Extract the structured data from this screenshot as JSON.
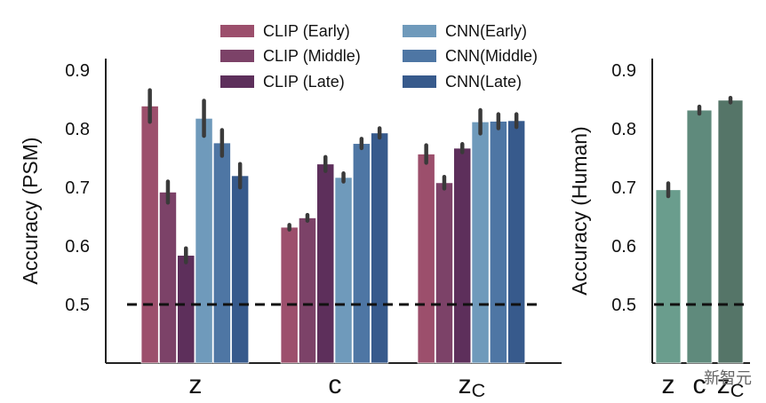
{
  "watermark": "新智元",
  "chart_data": [
    {
      "type": "bar",
      "ylabel": "Accuracy (PSM)",
      "ylim": [
        0.4,
        0.92
      ],
      "yticks": [
        "0.5",
        "0.6",
        "0.7",
        "0.8",
        "0.9"
      ],
      "ytick_values": [
        0.5,
        0.6,
        0.7,
        0.8,
        0.9
      ],
      "categories": [
        {
          "main": "z",
          "sub": ""
        },
        {
          "main": "c",
          "sub": ""
        },
        {
          "main": "z",
          "sub": "C"
        }
      ],
      "chance_line": 0.5,
      "error_bars": true,
      "grid": false,
      "legend_position": "top",
      "series": [
        {
          "name": "CLIP (Early)",
          "color": "#9c4f6c",
          "values": [
            0.839,
            0.632,
            0.757
          ],
          "err": [
            0.027,
            0.004,
            0.015
          ]
        },
        {
          "name": "CLIP (Middle)",
          "color": "#7c4268",
          "values": [
            0.692,
            0.648,
            0.708
          ],
          "err": [
            0.018,
            0.005,
            0.01
          ]
        },
        {
          "name": "CLIP (Late)",
          "color": "#5d2f5b",
          "values": [
            0.584,
            0.74,
            0.767
          ],
          "err": [
            0.012,
            0.012,
            0.007
          ]
        },
        {
          "name": "CNN(Early)",
          "color": "#6f9abb",
          "values": [
            0.818,
            0.717,
            0.812
          ],
          "err": [
            0.03,
            0.007,
            0.02
          ]
        },
        {
          "name": "CNN(Middle)",
          "color": "#4e76a4",
          "values": [
            0.776,
            0.775,
            0.813
          ],
          "err": [
            0.022,
            0.008,
            0.012
          ]
        },
        {
          "name": "CNN(Late)",
          "color": "#375a8c",
          "values": [
            0.72,
            0.793,
            0.814
          ],
          "err": [
            0.02,
            0.008,
            0.011
          ]
        }
      ]
    },
    {
      "type": "bar",
      "ylabel": "Accuracy (Human)",
      "ylim": [
        0.4,
        0.92
      ],
      "yticks": [
        "0.5",
        "0.6",
        "0.7",
        "0.8",
        "0.9"
      ],
      "ytick_values": [
        0.5,
        0.6,
        0.7,
        0.8,
        0.9
      ],
      "categories": [
        {
          "main": "z",
          "sub": ""
        },
        {
          "main": "c",
          "sub": ""
        },
        {
          "main": "z",
          "sub": "C"
        }
      ],
      "chance_line": 0.5,
      "error_bars": true,
      "grid": false,
      "colors": [
        "#6a9d8d",
        "#5f8a7c",
        "#557568"
      ],
      "values": [
        0.696,
        0.832,
        0.849
      ],
      "err": [
        0.011,
        0.006,
        0.004
      ]
    }
  ]
}
